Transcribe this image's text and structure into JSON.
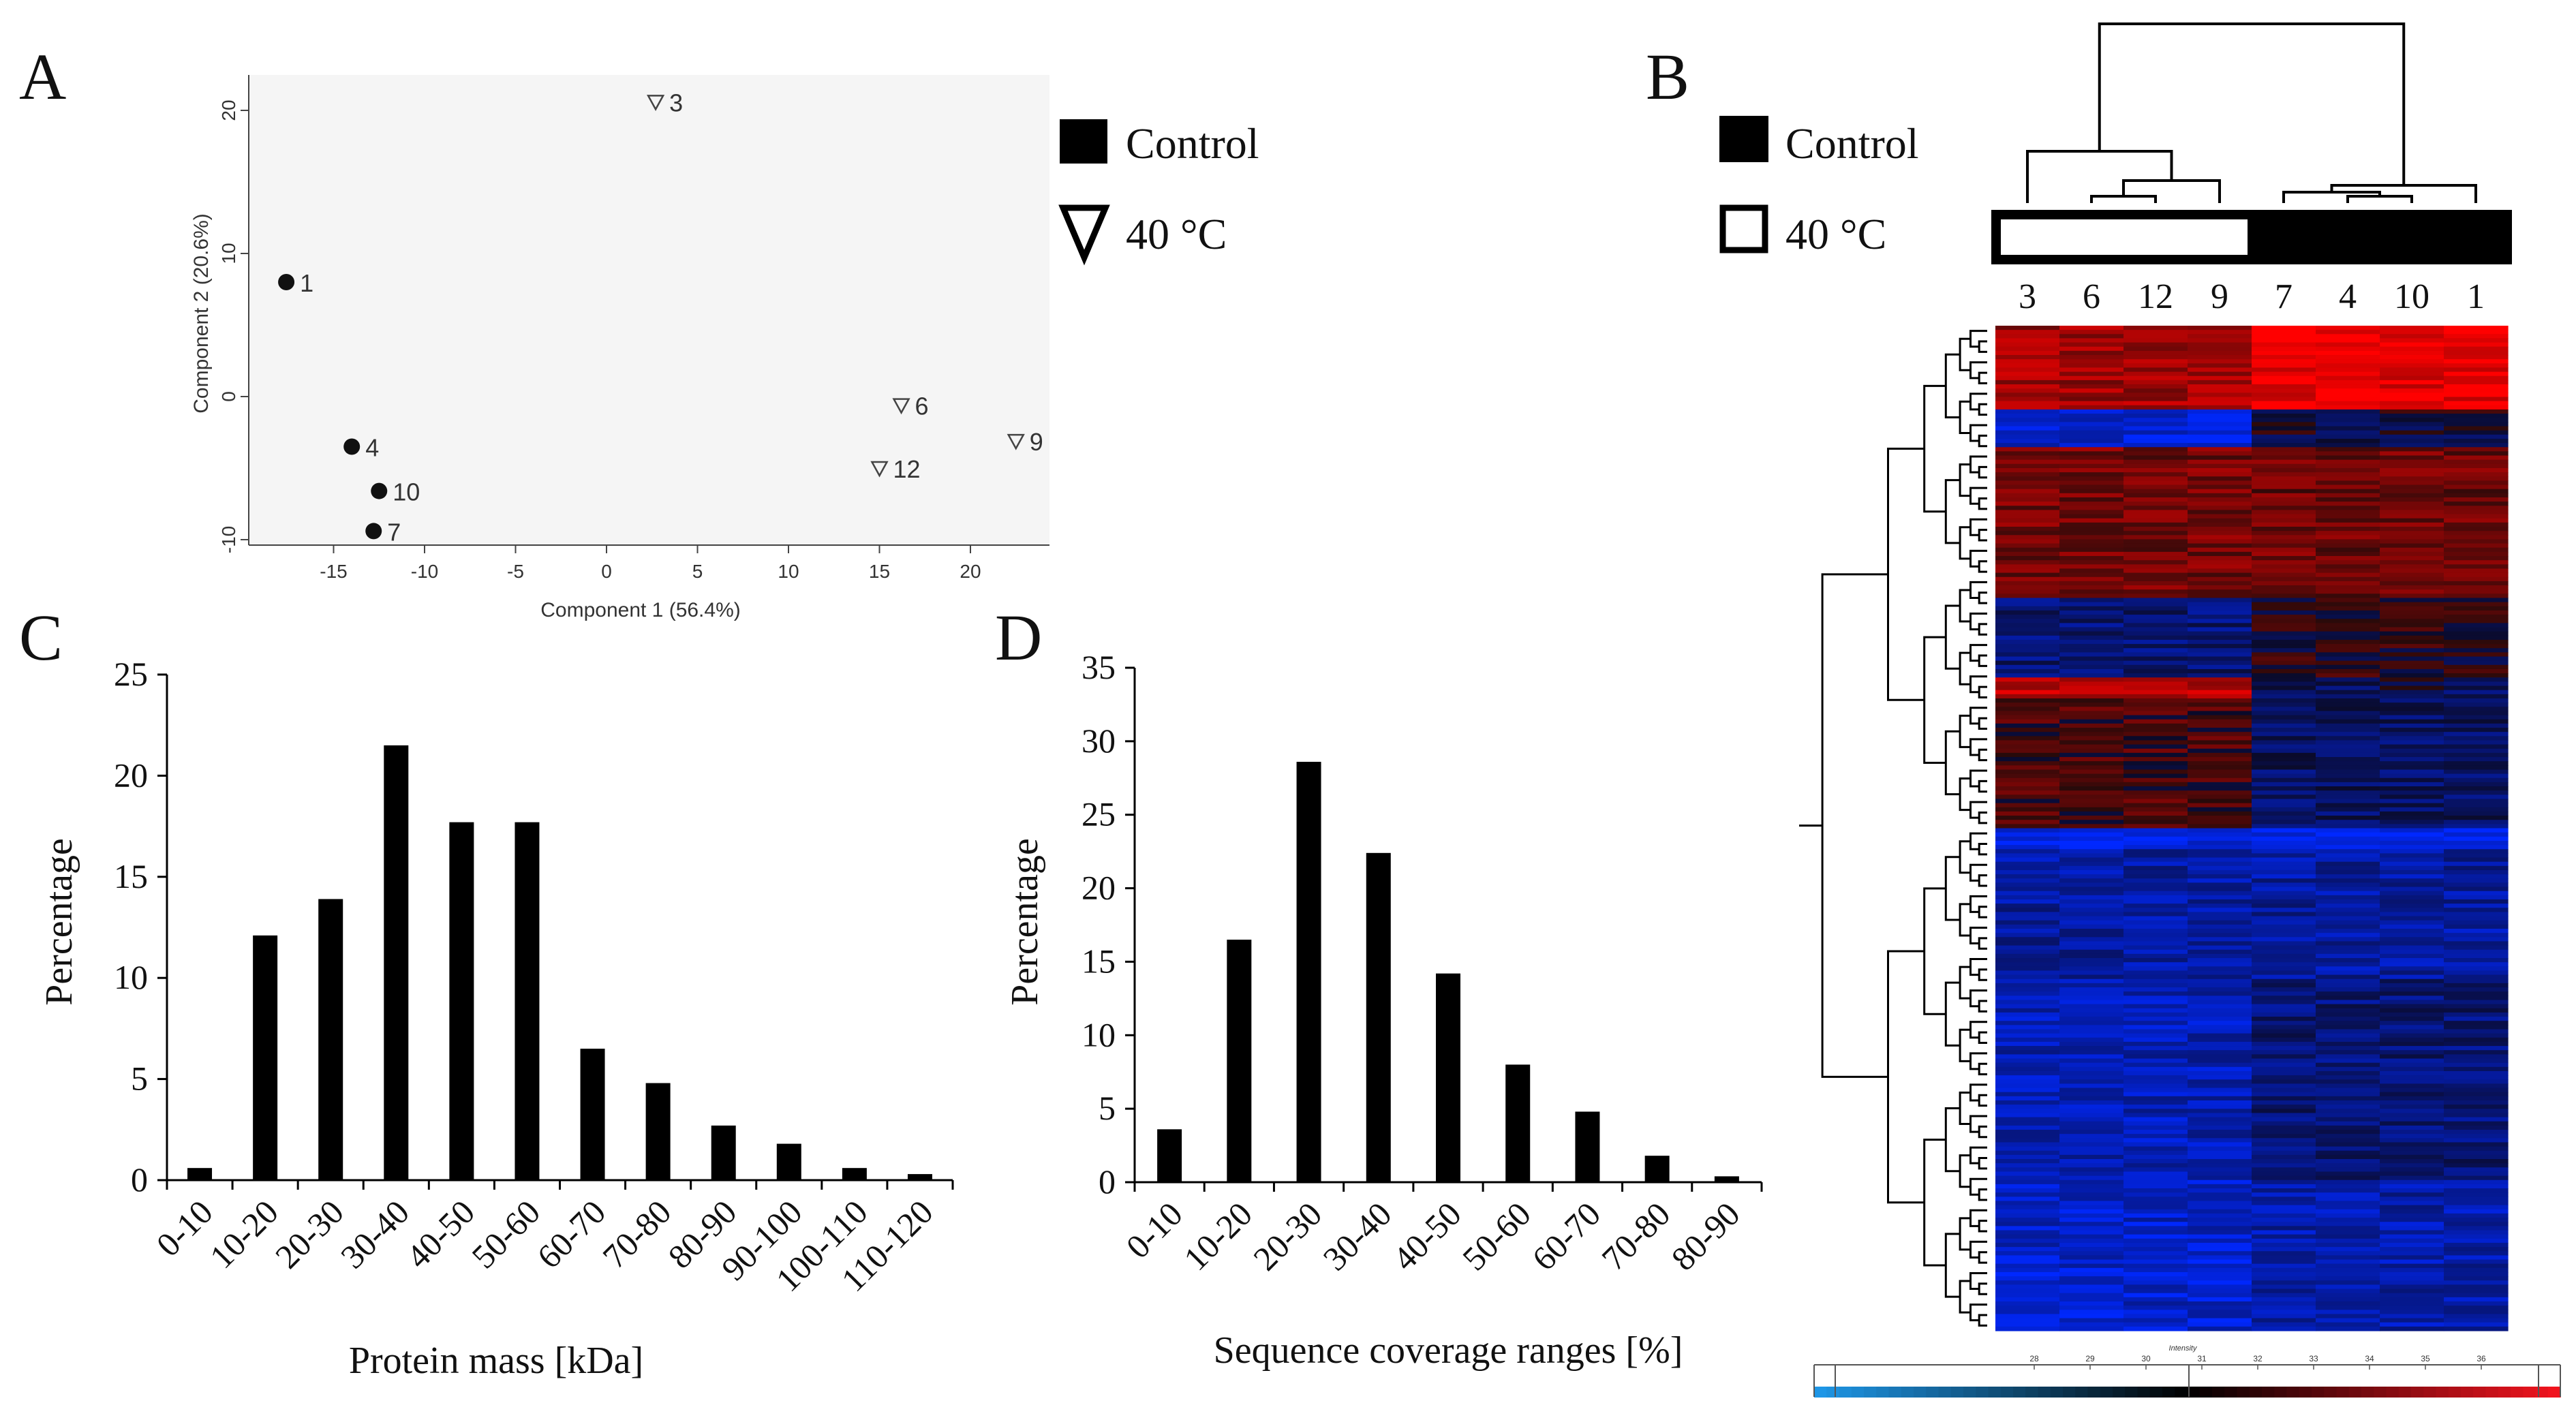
{
  "panels": {
    "A": "A",
    "B": "B",
    "C": "C",
    "D": "D"
  },
  "legend": {
    "control": "Control",
    "heat": "40 °C"
  },
  "chart_data": [
    {
      "panel": "A",
      "type": "scatter",
      "xlabel": "Component 1 (56.4%)",
      "ylabel": "Component 2 (20.6%)",
      "xlim": [
        -20,
        25
      ],
      "ylim": [
        -10.5,
        22
      ],
      "xticks": [
        "-15",
        "-10",
        "-5",
        "0",
        "5",
        "10",
        "15",
        "20"
      ],
      "yticks": [
        "-10",
        "0",
        "10",
        "20"
      ],
      "series": [
        {
          "name": "Control",
          "marker": "circle",
          "points": [
            {
              "label": "1",
              "x": -17.6,
              "y": 8.0
            },
            {
              "label": "4",
              "x": -14.0,
              "y": -3.5
            },
            {
              "label": "10",
              "x": -12.5,
              "y": -6.6
            },
            {
              "label": "7",
              "x": -12.8,
              "y": -9.4
            }
          ]
        },
        {
          "name": "40 °C",
          "marker": "triangle",
          "points": [
            {
              "label": "3",
              "x": 2.7,
              "y": 20.6
            },
            {
              "label": "6",
              "x": 16.2,
              "y": -0.6
            },
            {
              "label": "12",
              "x": 15.0,
              "y": -5.0
            },
            {
              "label": "9",
              "x": 22.5,
              "y": -3.1
            }
          ]
        }
      ]
    },
    {
      "panel": "C",
      "type": "bar",
      "xlabel": "Protein mass [kDa]",
      "ylabel": "Percentage",
      "ylim": [
        0,
        25
      ],
      "yticks": [
        "0",
        "5",
        "10",
        "15",
        "20",
        "25"
      ],
      "categories": [
        "0-10",
        "10-20",
        "20-30",
        "30-40",
        "40-50",
        "50-60",
        "60-70",
        "70-80",
        "80-90",
        "90-100",
        "100-110",
        "110-120"
      ],
      "values": [
        0.6,
        12.1,
        13.9,
        21.5,
        17.7,
        17.7,
        6.5,
        4.8,
        2.7,
        1.8,
        0.6,
        0.3
      ]
    },
    {
      "panel": "D",
      "type": "bar",
      "xlabel": "Sequence coverage ranges [%]",
      "ylabel": "Percentage",
      "ylim": [
        0,
        35
      ],
      "yticks": [
        "0",
        "5",
        "10",
        "15",
        "20",
        "25",
        "30",
        "35"
      ],
      "categories": [
        "0-10",
        "10-20",
        "20-30",
        "30-40",
        "40-50",
        "50-60",
        "60-70",
        "70-80",
        "80-90"
      ],
      "values": [
        3.6,
        16.5,
        28.6,
        22.4,
        14.2,
        8.0,
        4.8,
        1.8,
        0.4
      ]
    },
    {
      "panel": "B",
      "type": "heatmap",
      "columns": [
        "3",
        "6",
        "12",
        "9",
        "7",
        "4",
        "10",
        "1"
      ],
      "groups": [
        "40 °C",
        "40 °C",
        "40 °C",
        "40 °C",
        "Control",
        "Control",
        "Control",
        "Control"
      ],
      "colorscale": {
        "low": "#1a3cff",
        "mid": "#000000",
        "high": "#ff1a1a"
      },
      "colorbar_title": "Intensity",
      "colorbar_ticks": [
        "28",
        "29",
        "30",
        "31",
        "32",
        "33",
        "34",
        "35",
        "36"
      ]
    }
  ]
}
